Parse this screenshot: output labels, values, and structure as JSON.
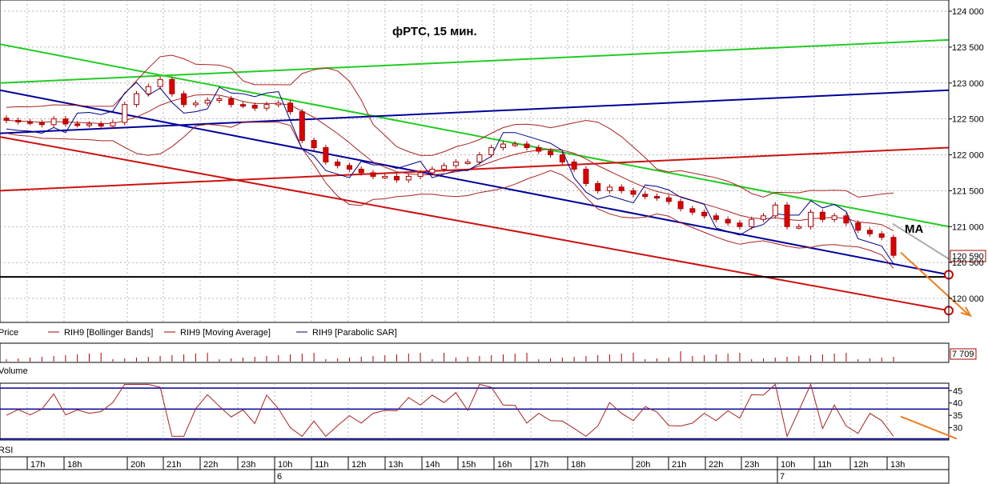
{
  "chart_data": {
    "type": "candlestick",
    "title": "фРТС,  15 мин.",
    "annotation_ma": "MA",
    "price_axis": {
      "ticks": [
        "124 000",
        "123 500",
        "123 000",
        "122 500",
        "122 000",
        "121 500",
        "121 000",
        "120 590",
        "120 500",
        "120 000"
      ],
      "ylim": [
        119830,
        124000
      ],
      "last_price": "120 590"
    },
    "legend": [
      {
        "name": "Price",
        "color": "#cc0000"
      },
      {
        "name": "RIH9 [Bollinger Bands]",
        "color": "#aa0000"
      },
      {
        "name": "RIH9 [Moving Average]",
        "color": "#aa0000"
      },
      {
        "name": "RIH9 [Parabolic SAR]",
        "color": "#000088"
      }
    ],
    "volume": {
      "label": "Volume",
      "last": "7 709"
    },
    "rsi": {
      "label": "RSI",
      "ticks": [
        "45",
        "40",
        "35",
        "30"
      ],
      "ylim": [
        25,
        48
      ],
      "levels": [
        46,
        37.5,
        25.5
      ]
    },
    "time_axis": {
      "hours": [
        "17h",
        "18h",
        "20h",
        "21h",
        "22h",
        "23h",
        "10h",
        "11h",
        "12h",
        "13h",
        "14h",
        "15h",
        "16h",
        "17h",
        "18h",
        "20h",
        "21h",
        "22h",
        "23h",
        "10h",
        "11h",
        "12h",
        "13h"
      ],
      "days": [
        "6",
        "7"
      ]
    },
    "close_series": [
      122480,
      122460,
      122450,
      122420,
      122500,
      122430,
      122420,
      122430,
      122400,
      122450,
      122700,
      122850,
      122950,
      123050,
      122850,
      122700,
      122720,
      122760,
      122780,
      122700,
      122690,
      122650,
      122700,
      122720,
      122600,
      122200,
      122100,
      121900,
      121850,
      121800,
      121750,
      121700,
      121700,
      121650,
      121700,
      121750,
      121800,
      121850,
      121900,
      121900,
      122000,
      122100,
      122150,
      122150,
      122100,
      122050,
      122000,
      121900,
      121800,
      121600,
      121500,
      121550,
      121500,
      121450,
      121420,
      121400,
      121350,
      121250,
      121200,
      121150,
      121100,
      121050,
      121000,
      121100,
      121150,
      121300,
      121000,
      121000,
      121200,
      121100,
      121150,
      121050,
      120950,
      120900,
      120850,
      120600
    ],
    "colors": {
      "up": "#ffffff",
      "down": "#dd0000",
      "outline": "#aa0000",
      "sar": "#000088",
      "green": "#22cc22",
      "blue_line": "#000099",
      "red_line": "#cc1111",
      "arrow": "#f07c1e"
    }
  }
}
